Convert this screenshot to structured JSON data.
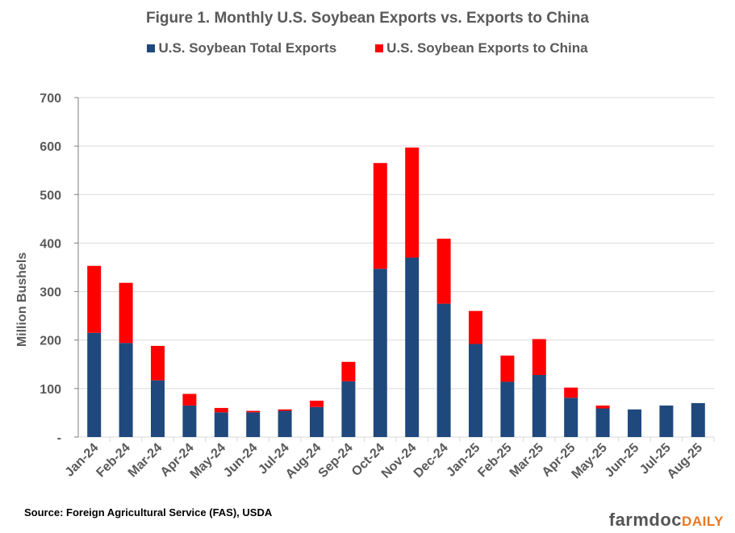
{
  "chart_data": {
    "type": "bar",
    "stacked": true,
    "title": "Figure 1. Monthly U.S. Soybean Exports vs. Exports to China",
    "ylabel": "Million Bushels",
    "xlabel": "",
    "ylim": [
      0,
      700
    ],
    "yticks": [
      "-",
      "100",
      "200",
      "300",
      "400",
      "500",
      "600",
      "700"
    ],
    "grid": true,
    "legend_position": "top",
    "categories": [
      "Jan-24",
      "Feb-24",
      "Mar-24",
      "Apr-24",
      "May-24",
      "Jun-24",
      "Jul-24",
      "Aug-24",
      "Sep-24",
      "Oct-24",
      "Nov-24",
      "Dec-24",
      "Jan-25",
      "Feb-25",
      "Mar-25",
      "Apr-25",
      "May-25",
      "Jun-25",
      "Jul-25",
      "Aug-25"
    ],
    "series": [
      {
        "name": "U.S. Soybean Total Exports",
        "color": "#1F497D",
        "values": [
          215,
          194,
          117,
          65,
          51,
          51,
          54,
          62,
          115,
          347,
          370,
          275,
          192,
          114,
          128,
          81,
          59,
          57,
          65,
          70
        ]
      },
      {
        "name": "U.S. Soybean Exports to China",
        "color": "#FF0000",
        "values": [
          138,
          124,
          71,
          24,
          9,
          3,
          3,
          13,
          40,
          218,
          227,
          134,
          68,
          54,
          74,
          21,
          6,
          0,
          0,
          0
        ]
      }
    ]
  },
  "footer": {
    "source": "Source: Foreign Agricultural Service (FAS), USDA",
    "logo_main": "farmdoc",
    "logo_sub": "DAILY"
  }
}
